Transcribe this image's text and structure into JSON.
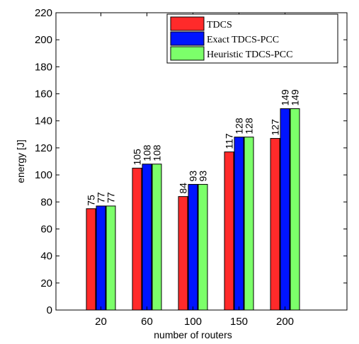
{
  "chart_data": {
    "type": "bar",
    "categories": [
      "20",
      "60",
      "100",
      "150",
      "200"
    ],
    "series": [
      {
        "name": "TDCS",
        "values": [
          75,
          105,
          84,
          117,
          127
        ],
        "color": "#ff2a2a"
      },
      {
        "name": "Exact TDCS-PCC",
        "values": [
          77,
          108,
          93,
          128,
          149
        ],
        "color": "#0014ff"
      },
      {
        "name": "Heuristic TDCS-PCC",
        "values": [
          77,
          108,
          93,
          128,
          149
        ],
        "color": "#7cff6a"
      }
    ],
    "title": "",
    "xlabel": "number of routers",
    "ylabel": "energy [J]",
    "ylim": [
      0,
      220
    ],
    "yticks": [
      0,
      20,
      40,
      60,
      80,
      100,
      120,
      140,
      160,
      180,
      200,
      220
    ],
    "grid": false,
    "legend_position": "top-right"
  }
}
